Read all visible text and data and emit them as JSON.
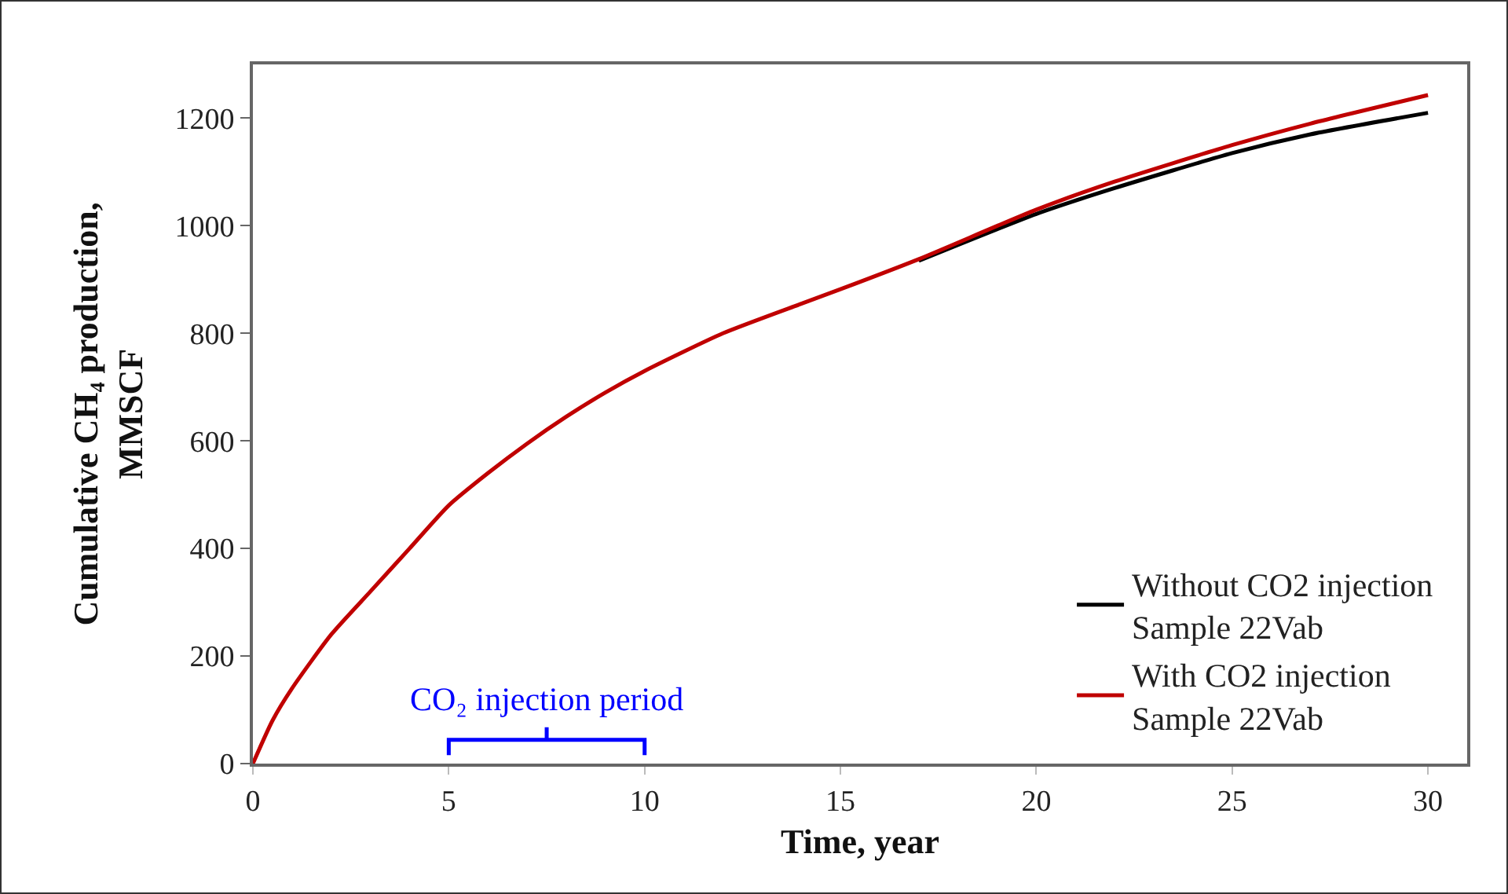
{
  "chart_data": {
    "type": "line",
    "xlabel": "Time, year",
    "ylabel": "Cumulative CH₄ production,\nMMSCF",
    "xlim": [
      0,
      31
    ],
    "xticks": [
      0,
      5,
      10,
      15,
      20,
      25,
      30
    ],
    "ylim": [
      0,
      1300
    ],
    "yticks": [
      0,
      200,
      400,
      600,
      800,
      1000,
      1200
    ],
    "grid": false,
    "legend": "bottom right",
    "marker": "none",
    "line_style": "solid",
    "annotations": [
      "CO₂ injection period"
    ],
    "series": [
      {
        "name": "Without CO2 injection\nSample 22Vab",
        "color": "#000000",
        "x": [
          17,
          20,
          22,
          25,
          27,
          30
        ],
        "values": [
          935,
          1022,
          1070,
          1135,
          1170,
          1210
        ]
      },
      {
        "name": "With CO2 injection\nSample 22Vab",
        "color": "#c00000",
        "x": [
          0,
          0.5,
          1,
          2,
          3,
          4,
          5,
          6,
          7,
          8,
          9,
          10,
          12,
          14,
          15,
          17,
          20,
          22,
          25,
          27,
          30
        ],
        "values": [
          0,
          80,
          140,
          240,
          320,
          400,
          480,
          540,
          595,
          645,
          690,
          730,
          800,
          855,
          882,
          938,
          1030,
          1082,
          1150,
          1190,
          1243
        ]
      }
    ]
  }
}
